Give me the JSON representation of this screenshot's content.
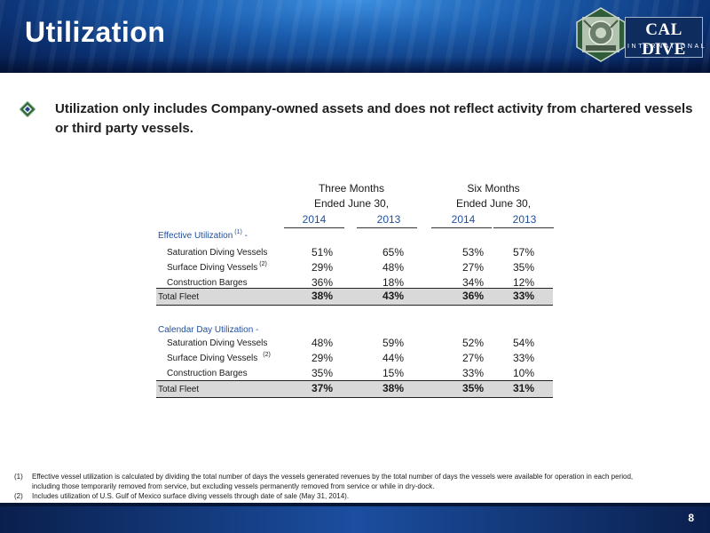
{
  "header": {
    "title": "Utilization"
  },
  "logo": {
    "name": "CAL DIVE",
    "sub": "INTERNATIONAL"
  },
  "bullet": {
    "text": "Utilization only includes Company-owned assets and does not reflect activity from chartered vessels or third party vessels."
  },
  "table": {
    "groups": [
      {
        "line1": "Three Months",
        "line2": "Ended June 30,"
      },
      {
        "line1": "Six Months",
        "line2": "Ended June 30,"
      }
    ],
    "years": [
      "2014",
      "2013",
      "2014",
      "2013"
    ],
    "sections": [
      {
        "title": "Effective Utilization",
        "title_sup": "(1)",
        "title_suffix": "-",
        "rows": [
          {
            "label": "Saturation Diving Vessels",
            "sup": "",
            "values": [
              "51%",
              "65%",
              "53%",
              "57%"
            ]
          },
          {
            "label": "Surface Diving Vessels",
            "sup": "(2)",
            "values": [
              "29%",
              "48%",
              "27%",
              "35%"
            ]
          },
          {
            "label": "Construction Barges",
            "sup": "",
            "values": [
              "36%",
              "18%",
              "34%",
              "12%"
            ]
          }
        ],
        "total": {
          "label": "Total Fleet",
          "values": [
            "38%",
            "43%",
            "36%",
            "33%"
          ]
        }
      },
      {
        "title": "Calendar Day Utilization -",
        "title_sup": "",
        "title_suffix": "",
        "rows": [
          {
            "label": "Saturation Diving Vessels",
            "sup": "",
            "values": [
              "48%",
              "59%",
              "52%",
              "54%"
            ]
          },
          {
            "label": "Surface Diving Vessels",
            "sup": "(2)",
            "values": [
              "29%",
              "44%",
              "27%",
              "33%"
            ]
          },
          {
            "label": "Construction Barges",
            "sup": "",
            "values": [
              "35%",
              "15%",
              "33%",
              "10%"
            ]
          }
        ],
        "total": {
          "label": "Total Fleet",
          "values": [
            "37%",
            "38%",
            "35%",
            "31%"
          ]
        }
      }
    ]
  },
  "footnotes": [
    {
      "num": "(1)",
      "text": "Effective vessel utilization is calculated by dividing the total number of days the vessels generated revenues by the total number of days the vessels were available for operation in each period,"
    },
    {
      "num": "",
      "text": "including those temporarily removed from service, but excluding vessels permanently removed from service or while in dry-dock."
    },
    {
      "num": "(2)",
      "text": "Includes utilization of U.S. Gulf of Mexico surface diving vessels through date of sale (May 31, 2014)."
    }
  ],
  "footer": {
    "page_number": "8"
  }
}
